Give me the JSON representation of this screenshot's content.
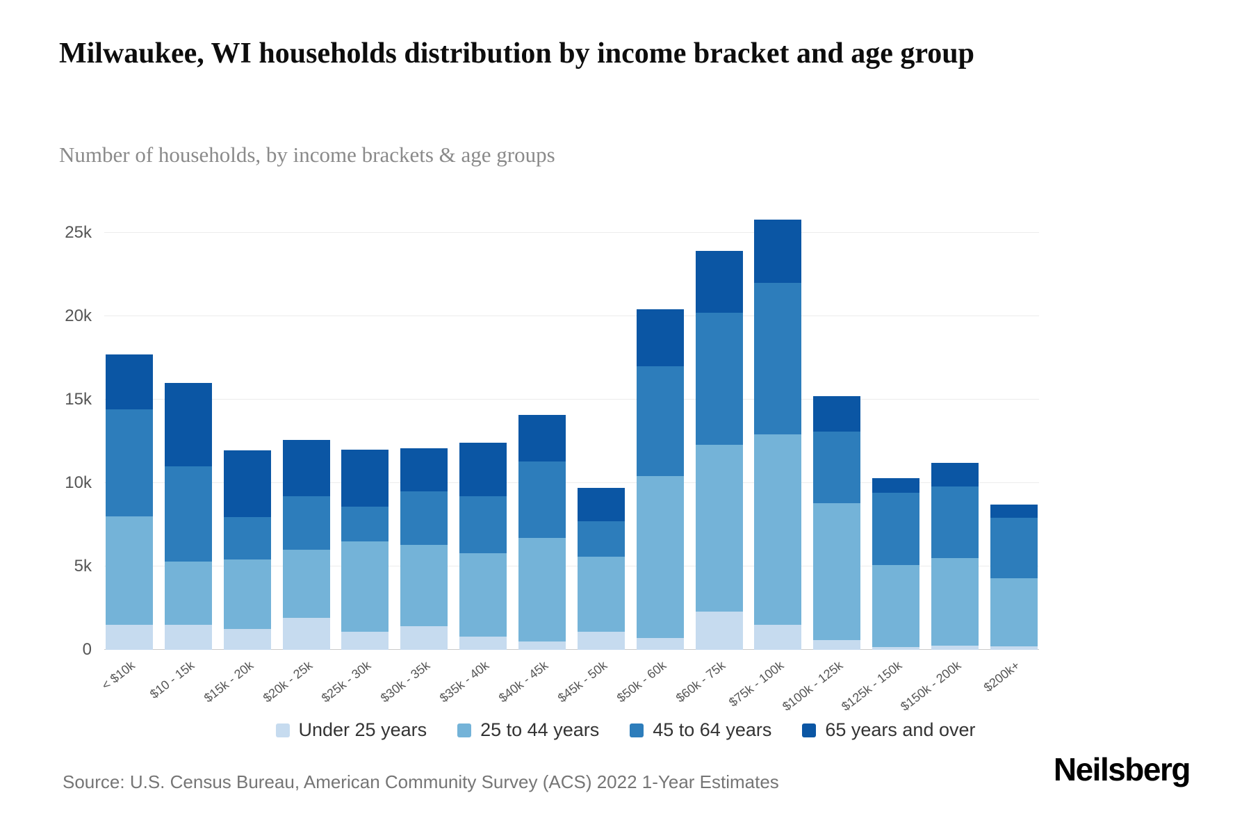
{
  "header": {
    "title": "Milwaukee, WI households distribution by income bracket and age group",
    "subtitle": "Number of households, by income brackets & age groups"
  },
  "chart_data": {
    "type": "bar",
    "stacked": true,
    "title": "Milwaukee, WI households distribution by income bracket and age group",
    "subtitle": "Number of households, by income brackets & age groups",
    "xlabel": "",
    "ylabel": "",
    "grid": true,
    "legend_position": "bottom",
    "ylim": [
      0,
      26000
    ],
    "yticks": [
      0,
      5000,
      10000,
      15000,
      20000,
      25000
    ],
    "ytick_labels": [
      "0",
      "5k",
      "10k",
      "15k",
      "20k",
      "25k"
    ],
    "categories": [
      "< $10k",
      "$10 - 15k",
      "$15k - 20k",
      "$20k - 25k",
      "$25k - 30k",
      "$30k - 35k",
      "$35k - 40k",
      "$40k - 45k",
      "$45k - 50k",
      "$50k - 60k",
      "$60k - 75k",
      "$75k - 100k",
      "$100k - 125k",
      "$125k - 150k",
      "$150k - 200k",
      "$200k+"
    ],
    "series": [
      {
        "name": "Under 25 years",
        "color": "#c6dbef",
        "values": [
          1500,
          1500,
          1250,
          1900,
          1100,
          1400,
          800,
          500,
          1100,
          700,
          2300,
          1500,
          600,
          150,
          250,
          200
        ]
      },
      {
        "name": "25 to 44 years",
        "color": "#74b3d8",
        "values": [
          6500,
          3800,
          4150,
          4100,
          5400,
          4900,
          5000,
          6200,
          4500,
          9700,
          10000,
          11400,
          8200,
          4950,
          5250,
          4100
        ]
      },
      {
        "name": "45 to 64 years",
        "color": "#2d7dbb",
        "values": [
          6400,
          5700,
          2550,
          3200,
          2100,
          3200,
          3400,
          4600,
          2100,
          6600,
          7900,
          9100,
          4300,
          4300,
          4300,
          3600
        ]
      },
      {
        "name": "65 years and over",
        "color": "#0b56a4",
        "values": [
          3300,
          5000,
          4000,
          3400,
          3400,
          2600,
          3200,
          2800,
          2000,
          3400,
          3700,
          3800,
          2100,
          900,
          1400,
          800
        ]
      }
    ]
  },
  "footer": {
    "source": "Source: U.S. Census Bureau, American Community Survey (ACS) 2022 1-Year Estimates",
    "brand": "Neilsberg"
  }
}
